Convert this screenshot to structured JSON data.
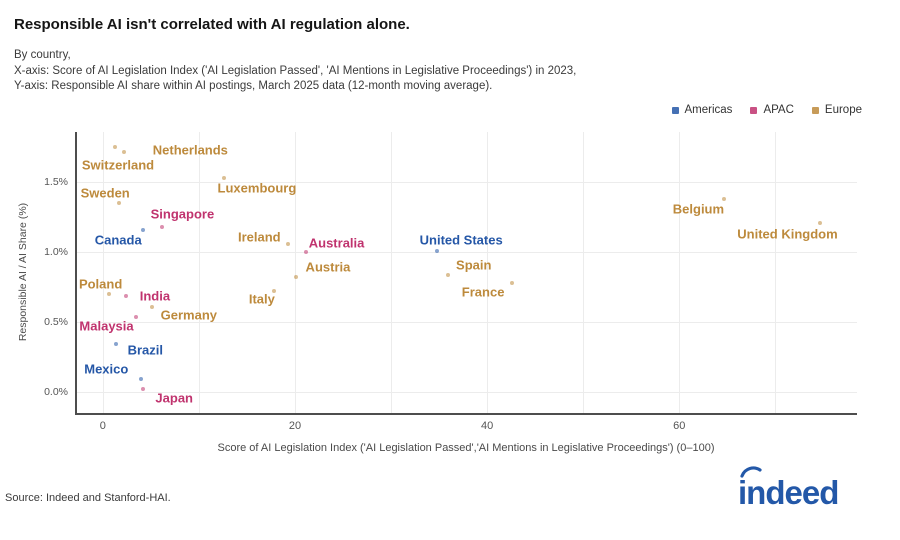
{
  "header": {
    "title": "Responsible AI isn't correlated with AI regulation alone.",
    "subtitle_line1": "By country,",
    "subtitle_line2": "X-axis: Score of AI Legislation Index ('AI Legislation Passed', 'AI Mentions in Legislative Proceedings') in 2023,",
    "subtitle_line3": "Y-axis: Responsible AI share within AI postings, March 2025 data (12-month moving average)."
  },
  "legend": [
    {
      "label": "Americas",
      "color": "#2557a7"
    },
    {
      "label": "APAC",
      "color": "#c0336e"
    },
    {
      "label": "Europe",
      "color": "#bd8a3c"
    }
  ],
  "chart_data": {
    "type": "scatter",
    "title": "Responsible AI isn't correlated with AI regulation alone.",
    "xlabel": "Score of AI Legislation Index ('AI Legislation Passed','AI Mentions in Legislative Proceedings') (0–100)",
    "ylabel": "Responsible AI / AI Share (%)",
    "xlim": [
      -2.9,
      78.5
    ],
    "ylim": [
      -0.15,
      1.86
    ],
    "x_ticks": [
      0,
      20,
      40,
      60
    ],
    "y_ticks": [
      {
        "value": 0.0,
        "label": "0.0%"
      },
      {
        "value": 0.5,
        "label": "0.5%"
      },
      {
        "value": 1.0,
        "label": "1.0%"
      },
      {
        "value": 1.5,
        "label": "1.5%"
      }
    ],
    "grid": {
      "vertical_lines": [
        0,
        10,
        20,
        30,
        40,
        50,
        60,
        70
      ],
      "horizontal_lines": [
        0,
        0.5,
        1.0,
        1.5
      ]
    },
    "legend_position": "top-right",
    "series": [
      {
        "name": "Americas",
        "color": "#2557a7",
        "points": [
          {
            "country": "Canada",
            "x": 4.2,
            "y": 1.16,
            "label_dx": -25,
            "label_dy": 10
          },
          {
            "country": "United States",
            "x": 34.8,
            "y": 1.01,
            "label_dx": 24,
            "label_dy": -11
          },
          {
            "country": "Brazil",
            "x": 1.4,
            "y": 0.34,
            "label_dx": 29,
            "label_dy": 6
          },
          {
            "country": "Mexico",
            "x": 4.0,
            "y": 0.09,
            "label_dx": -35,
            "label_dy": -10
          }
        ]
      },
      {
        "name": "APAC",
        "color": "#c0336e",
        "points": [
          {
            "country": "Singapore",
            "x": 6.2,
            "y": 1.18,
            "label_dx": 20,
            "label_dy": -13
          },
          {
            "country": "Australia",
            "x": 21.1,
            "y": 1.0,
            "label_dx": 31,
            "label_dy": -9
          },
          {
            "country": "India",
            "x": 2.4,
            "y": 0.69,
            "label_dx": 29,
            "label_dy": 0
          },
          {
            "country": "Malaysia",
            "x": 3.4,
            "y": 0.54,
            "label_dx": -29,
            "label_dy": 9
          },
          {
            "country": "Japan",
            "x": 4.2,
            "y": 0.02,
            "label_dx": 31,
            "label_dy": 9
          }
        ]
      },
      {
        "name": "Europe",
        "color": "#bd8a3c",
        "points": [
          {
            "country": "Netherlands",
            "x": 1.3,
            "y": 1.75,
            "label_dx": 75,
            "label_dy": 3
          },
          {
            "country": "Switzerland",
            "x": 2.2,
            "y": 1.72,
            "label_dx": -6,
            "label_dy": 13
          },
          {
            "country": "Sweden",
            "x": 1.7,
            "y": 1.35,
            "label_dx": -14,
            "label_dy": -10
          },
          {
            "country": "Luxembourg",
            "x": 12.6,
            "y": 1.53,
            "label_dx": 33,
            "label_dy": 10
          },
          {
            "country": "Ireland",
            "x": 19.3,
            "y": 1.06,
            "label_dx": -29,
            "label_dy": -7
          },
          {
            "country": "Austria",
            "x": 20.1,
            "y": 0.82,
            "label_dx": 32,
            "label_dy": -10
          },
          {
            "country": "Italy",
            "x": 17.8,
            "y": 0.72,
            "label_dx": -12,
            "label_dy": 8
          },
          {
            "country": "Poland",
            "x": 0.6,
            "y": 0.7,
            "label_dx": -8,
            "label_dy": -10
          },
          {
            "country": "Germany",
            "x": 5.1,
            "y": 0.61,
            "label_dx": 37,
            "label_dy": 8
          },
          {
            "country": "Spain",
            "x": 35.9,
            "y": 0.84,
            "label_dx": 26,
            "label_dy": -10
          },
          {
            "country": "France",
            "x": 42.6,
            "y": 0.78,
            "label_dx": -29,
            "label_dy": 9
          },
          {
            "country": "Belgium",
            "x": 64.7,
            "y": 1.38,
            "label_dx": -26,
            "label_dy": 10
          },
          {
            "country": "United Kingdom",
            "x": 74.7,
            "y": 1.21,
            "label_dx": -33,
            "label_dy": 11
          }
        ]
      }
    ]
  },
  "footer": {
    "source": "Source: Indeed and Stanford-HAI.",
    "logo_text": "indeed",
    "logo_color": "#2358a8"
  }
}
